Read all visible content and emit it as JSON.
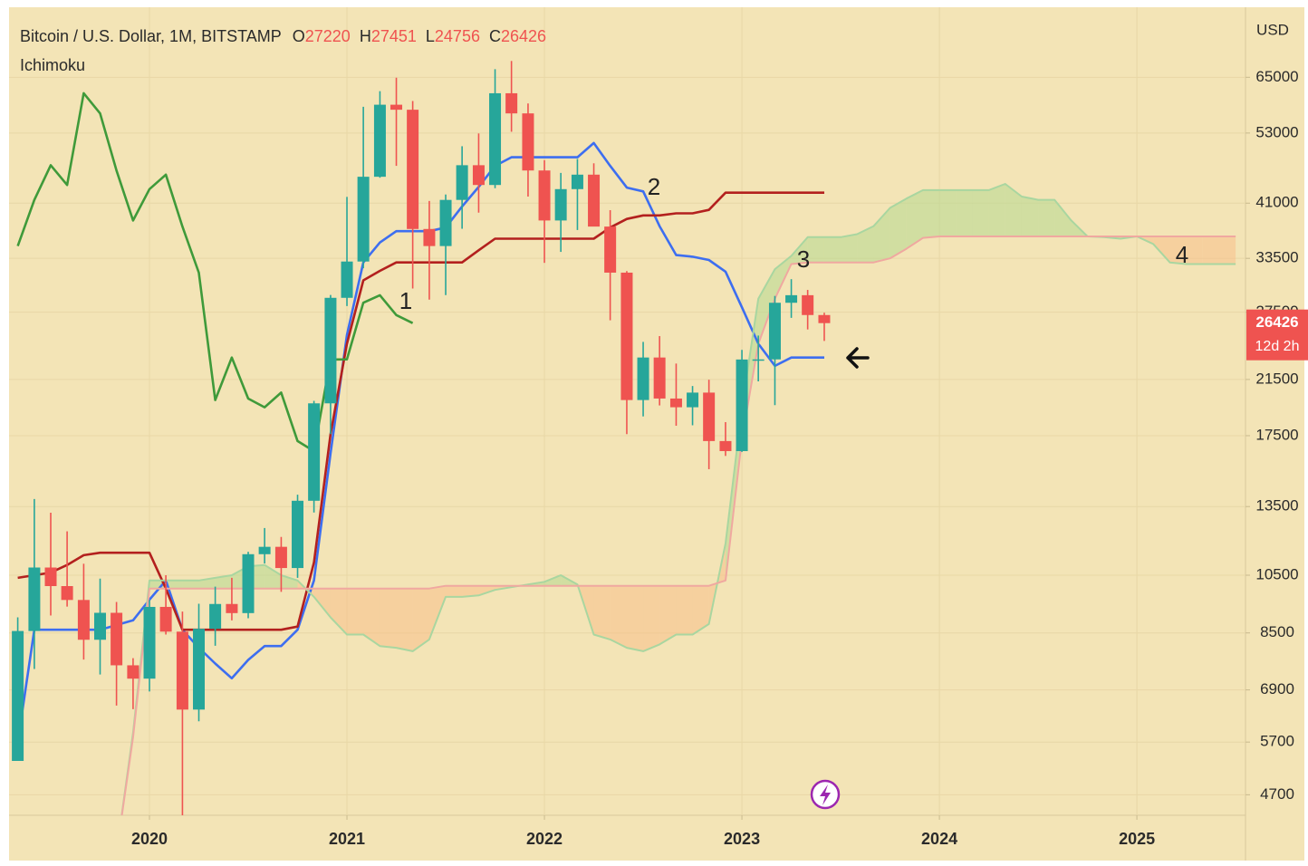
{
  "chart_data": {
    "type": "candlestick",
    "title": "Bitcoin / U.S. Dollar, 1M, BITSTAMP",
    "ohlc_labels": [
      "O",
      "H",
      "L",
      "C"
    ],
    "indicator": "Ichimoku",
    "y_axis_label": "USD",
    "countdown": "12d 2h",
    "annotations": [
      "1",
      "2",
      "3",
      "4"
    ],
    "ylog": true,
    "grid": true,
    "xlim": [
      2019.289,
      2025.55
    ],
    "xticks": [
      2020,
      2021,
      2022,
      2023,
      2024,
      2025
    ],
    "ylim": [
      4360,
      84000
    ],
    "yticks": [
      4700,
      5700,
      6900,
      8500,
      10500,
      13500,
      17500,
      21500,
      27500,
      33500,
      41000,
      53000,
      65000
    ],
    "up_color": "#26a69a",
    "down_color": "#ef5350",
    "x": [
      2019.333,
      2019.417,
      2019.5,
      2019.583,
      2019.667,
      2019.75,
      2019.833,
      2019.917,
      2020,
      2020.083,
      2020.167,
      2020.25,
      2020.333,
      2020.417,
      2020.5,
      2020.583,
      2020.667,
      2020.75,
      2020.833,
      2020.917,
      2021,
      2021.083,
      2021.167,
      2021.25,
      2021.333,
      2021.417,
      2021.5,
      2021.583,
      2021.667,
      2021.75,
      2021.833,
      2021.917,
      2022,
      2022.083,
      2022.167,
      2022.25,
      2022.333,
      2022.417,
      2022.5,
      2022.583,
      2022.667,
      2022.75,
      2022.833,
      2022.917,
      2023,
      2023.083,
      2023.167,
      2023.25,
      2023.333,
      2023.417,
      2023.5,
      2023.583,
      2023.667,
      2023.75,
      2023.833,
      2023.917,
      2024,
      2024.083,
      2024.167,
      2024.25,
      2024.333,
      2024.417,
      2024.5,
      2024.583,
      2024.667,
      2024.75,
      2024.833,
      2024.917,
      2025,
      2025.083,
      2025.167,
      2025.25,
      2025.333,
      2025.417,
      2025.5
    ],
    "open": [
      5320,
      8560,
      10800,
      10090,
      9590,
      8290,
      9150,
      7550,
      7190,
      9350,
      8540,
      6420,
      8630,
      9450,
      9140,
      11340,
      11650,
      10780,
      13790,
      19700,
      28990,
      33110,
      45160,
      58790,
      57720,
      37300,
      35040,
      41490,
      47110,
      43820,
      61310,
      56950,
      46210,
      38480,
      43160,
      45510,
      37630,
      31790,
      19940,
      23300,
      20050,
      19420,
      20490,
      17160,
      16540,
      23130,
      23140,
      28470,
      29270,
      27220,
      null,
      null,
      null,
      null,
      null,
      null,
      null,
      null,
      null,
      null,
      null,
      null,
      null,
      null,
      null,
      null,
      null,
      null,
      null,
      null,
      null,
      null,
      null,
      null,
      null
    ],
    "high": [
      9000,
      13880,
      13200,
      12330,
      10950,
      10370,
      9520,
      7750,
      9590,
      10500,
      9190,
      9460,
      10070,
      10400,
      11440,
      12480,
      12080,
      14100,
      19880,
      29300,
      41950,
      58350,
      61780,
      64900,
      59600,
      41330,
      42320,
      50500,
      52920,
      66970,
      69000,
      59060,
      47990,
      45800,
      48190,
      47440,
      39960,
      31970,
      24670,
      25200,
      22790,
      20990,
      21480,
      18390,
      23960,
      25250,
      29190,
      31040,
      29840,
      27451,
      null,
      null,
      null,
      null,
      null,
      null,
      null,
      null,
      null,
      null,
      null,
      null,
      null,
      null,
      null,
      null,
      null,
      null,
      null,
      null,
      null,
      null,
      null,
      null,
      null
    ],
    "low": [
      5320,
      7450,
      9060,
      9360,
      7710,
      7300,
      6515,
      6430,
      6860,
      8450,
      3850,
      6150,
      8110,
      8900,
      8970,
      10960,
      9880,
      10400,
      13210,
      17600,
      28130,
      32300,
      45000,
      47000,
      30000,
      28800,
      29280,
      37330,
      39600,
      43300,
      53250,
      42000,
      32950,
      34300,
      37160,
      37700,
      26700,
      17600,
      18780,
      19550,
      18150,
      18180,
      15480,
      16250,
      16490,
      21350,
      19570,
      26940,
      25820,
      24756,
      null,
      null,
      null,
      null,
      null,
      null,
      null,
      null,
      null,
      null,
      null,
      null,
      null,
      null,
      null,
      null,
      null,
      null,
      null,
      null,
      null,
      null,
      null,
      null,
      null
    ],
    "close": [
      8560,
      10800,
      10090,
      9590,
      8290,
      9150,
      7550,
      7190,
      9350,
      8540,
      6420,
      8630,
      9450,
      9140,
      11340,
      11650,
      10780,
      13790,
      19700,
      28990,
      33110,
      45160,
      58790,
      57720,
      37300,
      35040,
      41490,
      47110,
      43820,
      61310,
      56950,
      46210,
      38480,
      43160,
      45510,
      37630,
      31790,
      19940,
      23300,
      20050,
      19420,
      20490,
      17160,
      16540,
      23130,
      23140,
      28470,
      29270,
      27220,
      26426,
      null,
      null,
      null,
      null,
      null,
      null,
      null,
      null,
      null,
      null,
      null,
      null,
      null,
      null,
      null,
      null,
      null,
      null,
      null,
      null,
      null,
      null,
      null,
      null,
      null
    ],
    "series": [
      {
        "color": "#3d6ef0",
        "values": [
          5700,
          8600,
          8600,
          8600,
          8600,
          8600,
          8750,
          8900,
          9600,
          10300,
          8600,
          8050,
          7600,
          7200,
          7700,
          8100,
          8100,
          8600,
          10300,
          16400,
          25300,
          33000,
          35500,
          37000,
          37000,
          37000,
          37500,
          40500,
          43500,
          47000,
          48500,
          48500,
          48500,
          48500,
          48500,
          51100,
          47000,
          43400,
          42800,
          37700,
          33900,
          33700,
          33300,
          31900,
          28000,
          24500,
          22600,
          23300,
          23300,
          23300,
          null,
          null,
          null,
          null,
          null,
          null,
          null,
          null,
          null,
          null,
          null,
          null,
          null,
          null,
          null,
          null,
          null,
          null,
          null,
          null,
          null,
          null,
          null,
          null,
          null
        ]
      },
      {
        "color": "#b3201e",
        "values": [
          10400,
          10500,
          10600,
          10900,
          11300,
          11400,
          11400,
          11400,
          11400,
          10000,
          8600,
          8600,
          8600,
          8600,
          8600,
          8600,
          8600,
          8700,
          11000,
          17600,
          24500,
          30900,
          32000,
          33000,
          33000,
          33000,
          33000,
          33000,
          34500,
          36000,
          36000,
          36000,
          36000,
          36000,
          36000,
          36000,
          37500,
          38700,
          39200,
          39200,
          39500,
          39500,
          40000,
          42600,
          42600,
          42600,
          42600,
          42600,
          42600,
          42600,
          null,
          null,
          null,
          null,
          null,
          null,
          null,
          null,
          null,
          null,
          null,
          null,
          null,
          null,
          null,
          null,
          null,
          null,
          null,
          null,
          null,
          null,
          null,
          null,
          null
        ]
      },
      {
        "color": "#3f9a3a",
        "values": [
          35040,
          41490,
          47110,
          43820,
          61310,
          56950,
          46210,
          38480,
          43160,
          45510,
          37630,
          31790,
          19940,
          23300,
          20050,
          19420,
          20490,
          17160,
          16540,
          23130,
          23140,
          28470,
          29270,
          27220,
          26426,
          null,
          null,
          null,
          null,
          null,
          null,
          null,
          null,
          null,
          null,
          null,
          null,
          null,
          null,
          null,
          null,
          null,
          null,
          null,
          null,
          null,
          null,
          null,
          null,
          null,
          null,
          null,
          null,
          null,
          null,
          null,
          null,
          null,
          null,
          null,
          null,
          null,
          null,
          null,
          null,
          null,
          null,
          null,
          null,
          null,
          null,
          null,
          null,
          null,
          null
        ]
      },
      {
        "color": "#a9d6a0",
        "values": [
          null,
          null,
          null,
          null,
          null,
          null,
          3800,
          5900,
          10300,
          10300,
          10300,
          10300,
          10400,
          10500,
          10850,
          10900,
          10500,
          10300,
          9700,
          9000,
          8450,
          8450,
          8100,
          8050,
          7950,
          8300,
          9700,
          9700,
          9750,
          9950,
          10050,
          10150,
          10250,
          10500,
          10150,
          8450,
          8300,
          8050,
          7950,
          8150,
          8450,
          8450,
          8780,
          11800,
          19400,
          28900,
          32200,
          33800,
          36200,
          36200,
          36200,
          36600,
          37700,
          40300,
          41700,
          43000,
          43000,
          43000,
          43000,
          43000,
          44000,
          42000,
          41500,
          41500,
          38500,
          36300,
          36200,
          36000,
          36300,
          35300,
          33000,
          32800,
          32800,
          32800,
          32800
        ]
      },
      {
        "color": "#f0a8a0",
        "values": [
          null,
          null,
          null,
          null,
          null,
          null,
          3800,
          5800,
          10000,
          10000,
          10000,
          10000,
          10000,
          10000,
          10000,
          10000,
          10000,
          10000,
          10000,
          10000,
          10000,
          10000,
          10000,
          10000,
          10000,
          10000,
          10100,
          10100,
          10100,
          10100,
          10100,
          10100,
          10100,
          10100,
          10100,
          10100,
          10100,
          10100,
          10100,
          10100,
          10100,
          10100,
          10100,
          10300,
          17300,
          24500,
          28900,
          32800,
          33000,
          33000,
          33000,
          33000,
          33000,
          33500,
          34700,
          36100,
          36300,
          36300,
          36300,
          36300,
          36300,
          36300,
          36300,
          36300,
          36300,
          36300,
          36300,
          36300,
          36300,
          36300,
          36300,
          36300,
          36300,
          36300,
          36300
        ]
      }
    ],
    "cloud_colors": [
      "#b5d88f",
      "#f7c08a"
    ]
  }
}
